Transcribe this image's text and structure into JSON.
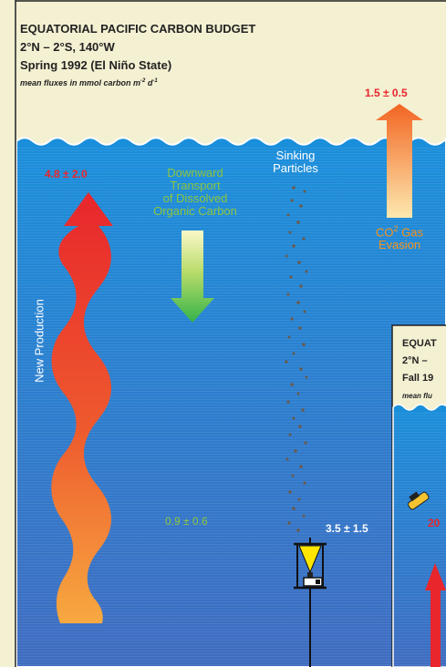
{
  "header": {
    "title": "EQUATORIAL PACIFIC CARBON BUDGET",
    "location": "2°N – 2°S, 140°W",
    "season": "Spring 1992 (El Niño State)",
    "units_prefix": "mean fluxes in mmol carbon m",
    "units_exp1": "-2",
    "units_mid": " d",
    "units_exp2": "-1"
  },
  "new_production": {
    "label": "New Production",
    "value": "4.8 ± 2.0"
  },
  "doc_transport": {
    "line1": "Downward",
    "line2": "Transport",
    "line3": "of Dissolved",
    "line4": "Organic Carbon",
    "value": "0.9 ± 0.6"
  },
  "sinking": {
    "line1": "Sinking",
    "line2": "Particles",
    "value": "3.5 ± 1.5"
  },
  "co2": {
    "prefix": "CO",
    "sup": "2",
    "suffix": " Gas",
    "line2": "Evasion",
    "value": "1.5 ± 0.5"
  },
  "inset": {
    "title": "EQUAT",
    "location": "2°N – ",
    "season": "Fall 19",
    "units": "mean flu",
    "value": "20"
  },
  "colors": {
    "sky": "#f4f0d2",
    "ocean_top": "#1a8ed8",
    "ocean_bottom": "#3c6fc0",
    "new_production_top": "#e8262c",
    "new_production_bottom": "#f7a940",
    "doc_top": "#fbf6c0",
    "doc_bottom": "#3ab54a",
    "co2_top": "#f26522",
    "co2_bottom": "#fde9b0"
  }
}
